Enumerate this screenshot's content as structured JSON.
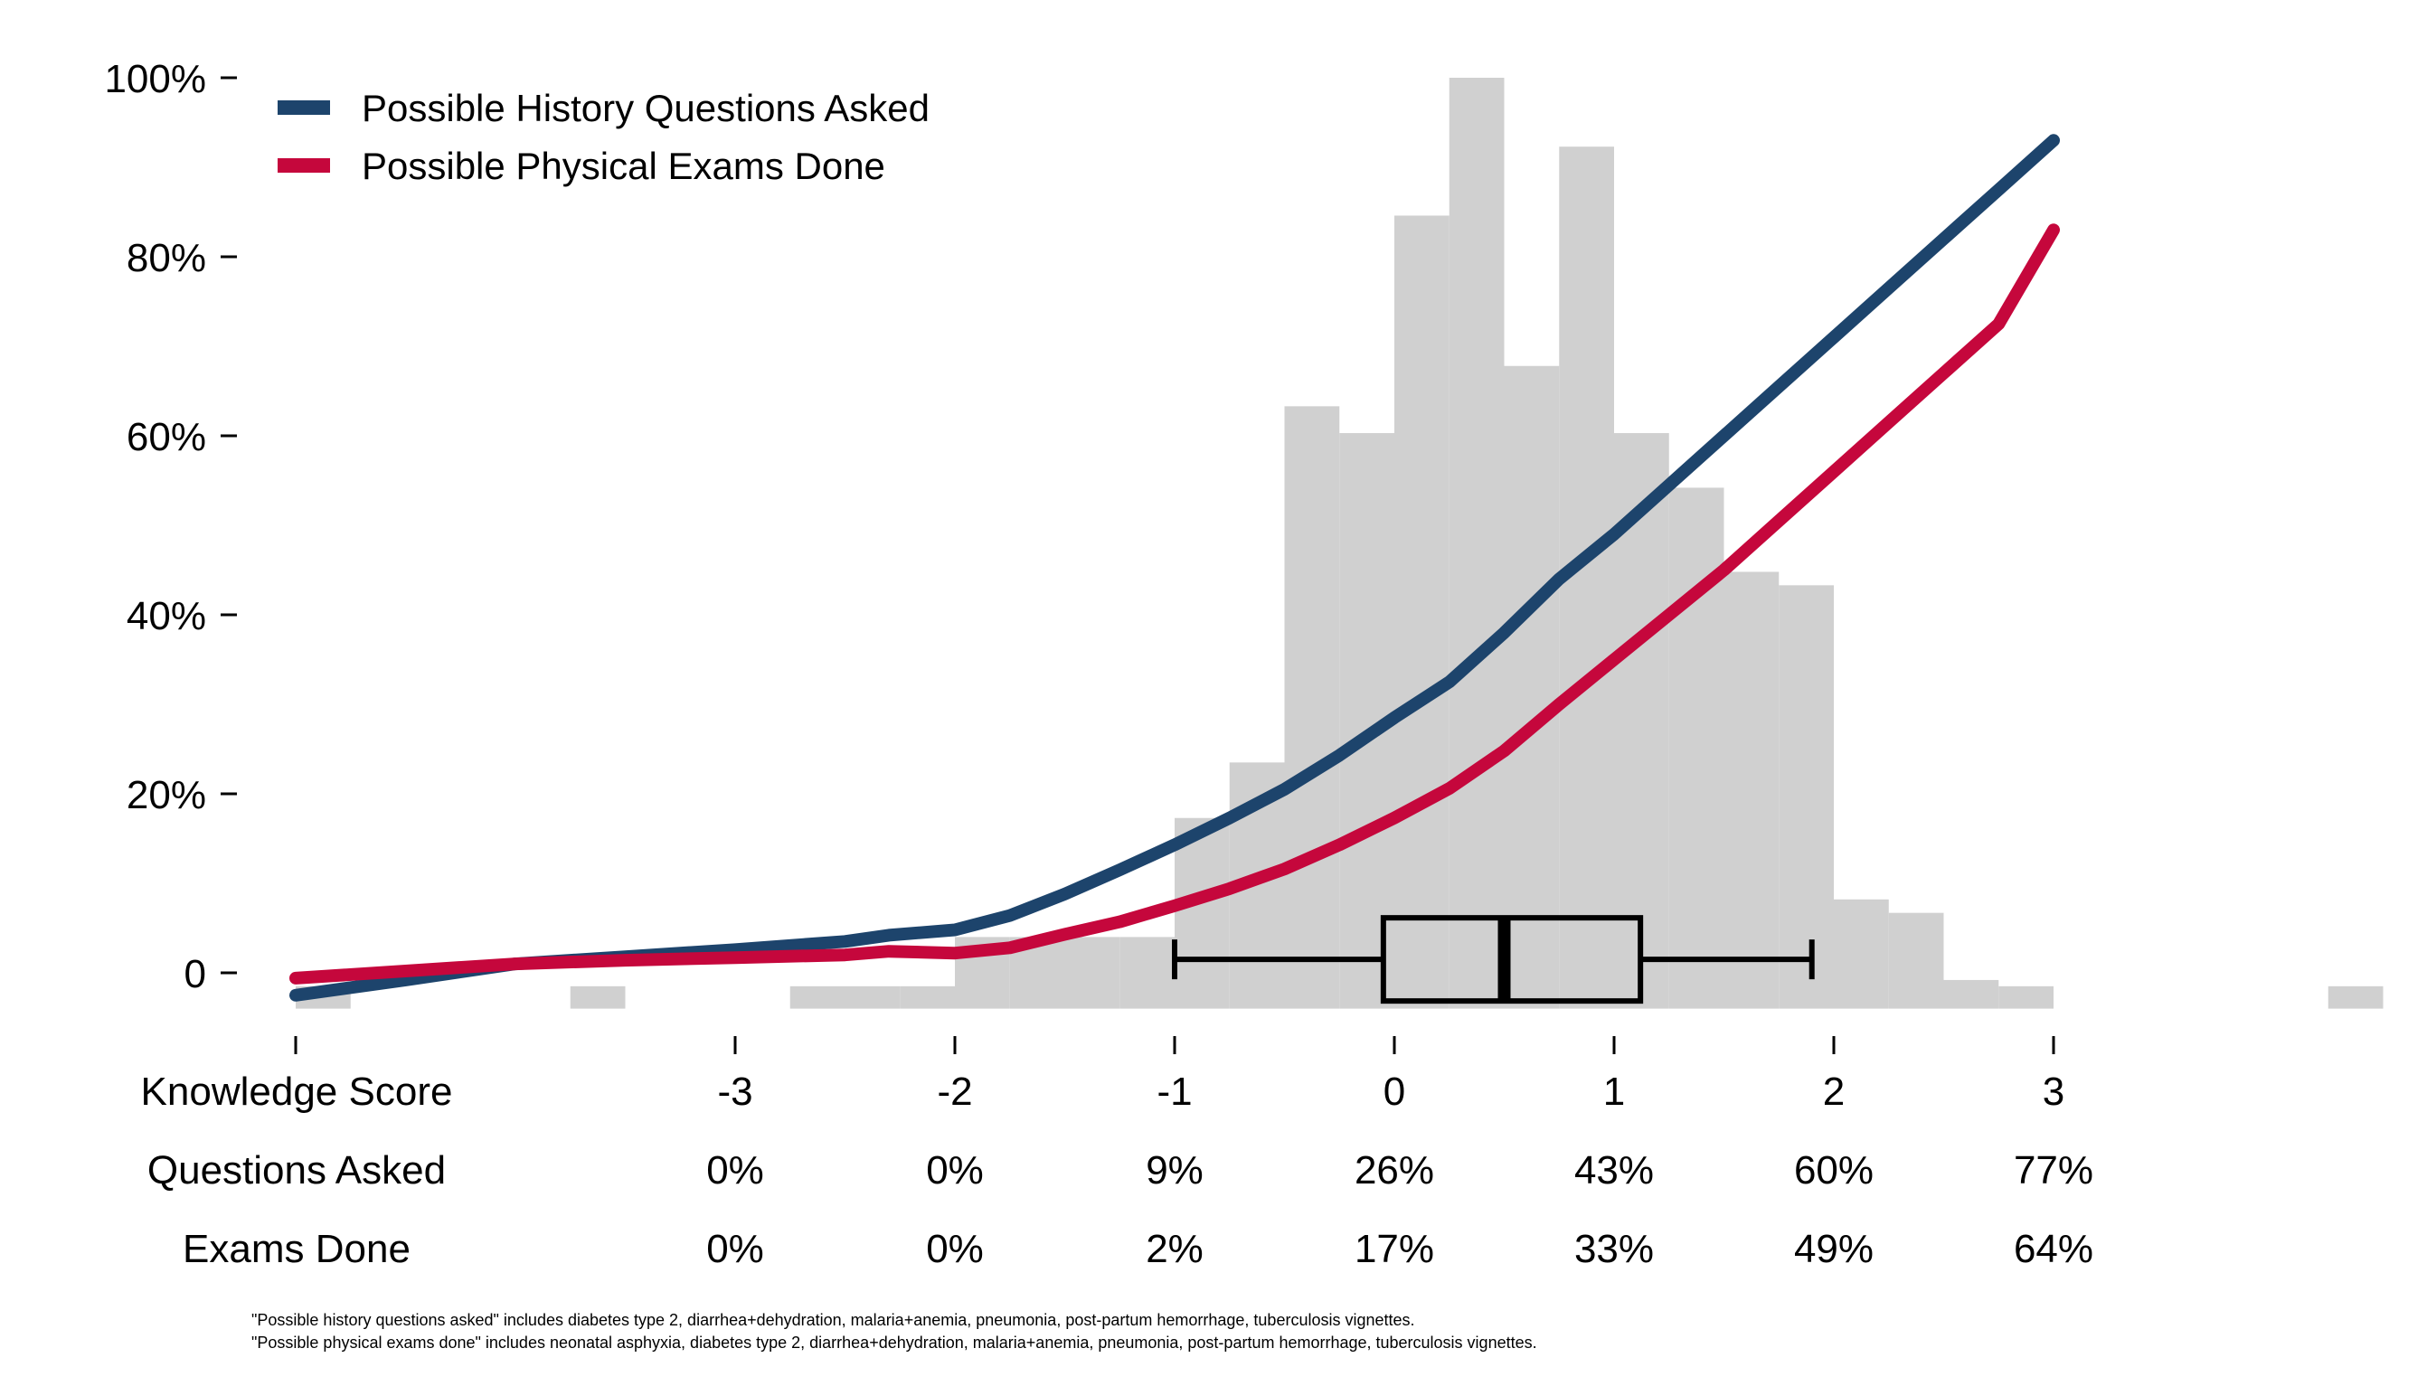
{
  "chart_data": {
    "type": "line",
    "title": "",
    "colors": {
      "history": "#1d446c",
      "exams": "#c5073c",
      "histogram": "#d0d0d0",
      "boxplot": "#000000"
    },
    "y_axis": {
      "ylim": [
        -4,
        100
      ],
      "ticks": [
        0,
        20,
        40,
        60,
        80,
        100
      ],
      "tick_labels": [
        "0",
        "20%",
        "40%",
        "60%",
        "80%",
        "100%"
      ]
    },
    "x_axis": {
      "xlim": [
        -5,
        4.5
      ],
      "ticks": [
        -5,
        -3,
        -2,
        -1,
        0,
        1,
        2,
        3
      ],
      "tick_labels": [
        "",
        "-3",
        "-2",
        "-1",
        "0",
        "1",
        "2",
        "3"
      ]
    },
    "legend": {
      "position": "top-left",
      "entries": [
        "Possible History Questions Asked",
        "Possible Physical Exams Done"
      ]
    },
    "series": [
      {
        "name": "Possible History Questions Asked",
        "color_key": "history",
        "x": [
          -5,
          -4.5,
          -4,
          -3.5,
          -3,
          -2.5,
          -2.3,
          -2,
          -1.75,
          -1.5,
          -1.25,
          -1,
          -0.75,
          -0.5,
          -0.25,
          0,
          0.25,
          0.5,
          0.75,
          1,
          1.25,
          1.5,
          1.75,
          2,
          2.25,
          2.5,
          2.75,
          3
        ],
        "values": [
          -2.5,
          -0.8,
          1.0,
          1.8,
          2.6,
          3.5,
          4.2,
          4.8,
          6.4,
          8.8,
          11.5,
          14.3,
          17.3,
          20.5,
          24.3,
          28.5,
          32.5,
          38.0,
          44.0,
          49.0,
          54.5,
          60.0,
          65.5,
          71.0,
          76.5,
          82.0,
          87.5,
          93.0
        ]
      },
      {
        "name": "Possible Physical Exams Done",
        "color_key": "exams",
        "x": [
          -5,
          -4.5,
          -4,
          -3.5,
          -3,
          -2.5,
          -2.3,
          -2,
          -1.75,
          -1.5,
          -1.25,
          -1,
          -0.75,
          -0.5,
          -0.25,
          0,
          0.25,
          0.5,
          0.75,
          1,
          1.25,
          1.5,
          1.75,
          2,
          2.25,
          2.5,
          2.75,
          3
        ],
        "values": [
          -0.6,
          0.2,
          1.0,
          1.4,
          1.7,
          2.0,
          2.4,
          2.2,
          2.8,
          4.3,
          5.7,
          7.5,
          9.4,
          11.6,
          14.3,
          17.3,
          20.6,
          24.8,
          30.0,
          35.0,
          40.0,
          45.0,
          50.5,
          56.0,
          61.5,
          67.0,
          72.5,
          83.0
        ]
      }
    ],
    "histogram": {
      "bin_width": 0.25,
      "bins": [
        {
          "x0": -5.0,
          "height": -1.5
        },
        {
          "x0": -3.75,
          "height": -1.5
        },
        {
          "x0": -2.75,
          "height": -1.5
        },
        {
          "x0": -2.5,
          "height": -1.5
        },
        {
          "x0": -2.25,
          "height": -1.5
        },
        {
          "x0": -2.0,
          "height": 4.0
        },
        {
          "x0": -1.75,
          "height": 4.0
        },
        {
          "x0": -1.5,
          "height": 4.0
        },
        {
          "x0": -1.25,
          "height": 4.0
        },
        {
          "x0": -1.0,
          "height": 17.3
        },
        {
          "x0": -0.75,
          "height": 23.5
        },
        {
          "x0": -0.5,
          "height": 63.3
        },
        {
          "x0": -0.25,
          "height": 60.3
        },
        {
          "x0": 0.0,
          "height": 84.6
        },
        {
          "x0": 0.25,
          "height": 100.0
        },
        {
          "x0": 0.5,
          "height": 67.8
        },
        {
          "x0": 0.75,
          "height": 92.3
        },
        {
          "x0": 1.0,
          "height": 60.3
        },
        {
          "x0": 1.25,
          "height": 54.2
        },
        {
          "x0": 1.5,
          "height": 44.8
        },
        {
          "x0": 1.75,
          "height": 43.3
        },
        {
          "x0": 2.0,
          "height": 8.2
        },
        {
          "x0": 2.25,
          "height": 6.7
        },
        {
          "x0": 2.5,
          "height": -0.8
        },
        {
          "x0": 2.75,
          "height": -1.5
        },
        {
          "x0": 4.25,
          "height": -1.5
        }
      ]
    },
    "boxplot": {
      "y": 1.5,
      "whisker_low": -1.0,
      "q1": -0.05,
      "median": 0.5,
      "q3": 1.12,
      "whisker_high": 1.9
    }
  },
  "table": {
    "header_label": "Knowledge Score",
    "rows": [
      {
        "label": "Questions Asked",
        "values": [
          "0%",
          "0%",
          "9%",
          "26%",
          "43%",
          "60%",
          "77%"
        ]
      },
      {
        "label": "Exams Done",
        "values": [
          "0%",
          "0%",
          "2%",
          "17%",
          "33%",
          "49%",
          "64%"
        ]
      }
    ]
  },
  "footnotes": [
    "\"Possible history questions asked\" includes diabetes type 2, diarrhea+dehydration, malaria+anemia, pneumonia, post-partum hemorrhage, tuberculosis vignettes.",
    "\"Possible physical exams done\" includes neonatal asphyxia, diabetes type 2, diarrhea+dehydration, malaria+anemia, pneumonia, post-partum hemorrhage, tuberculosis vignettes."
  ]
}
